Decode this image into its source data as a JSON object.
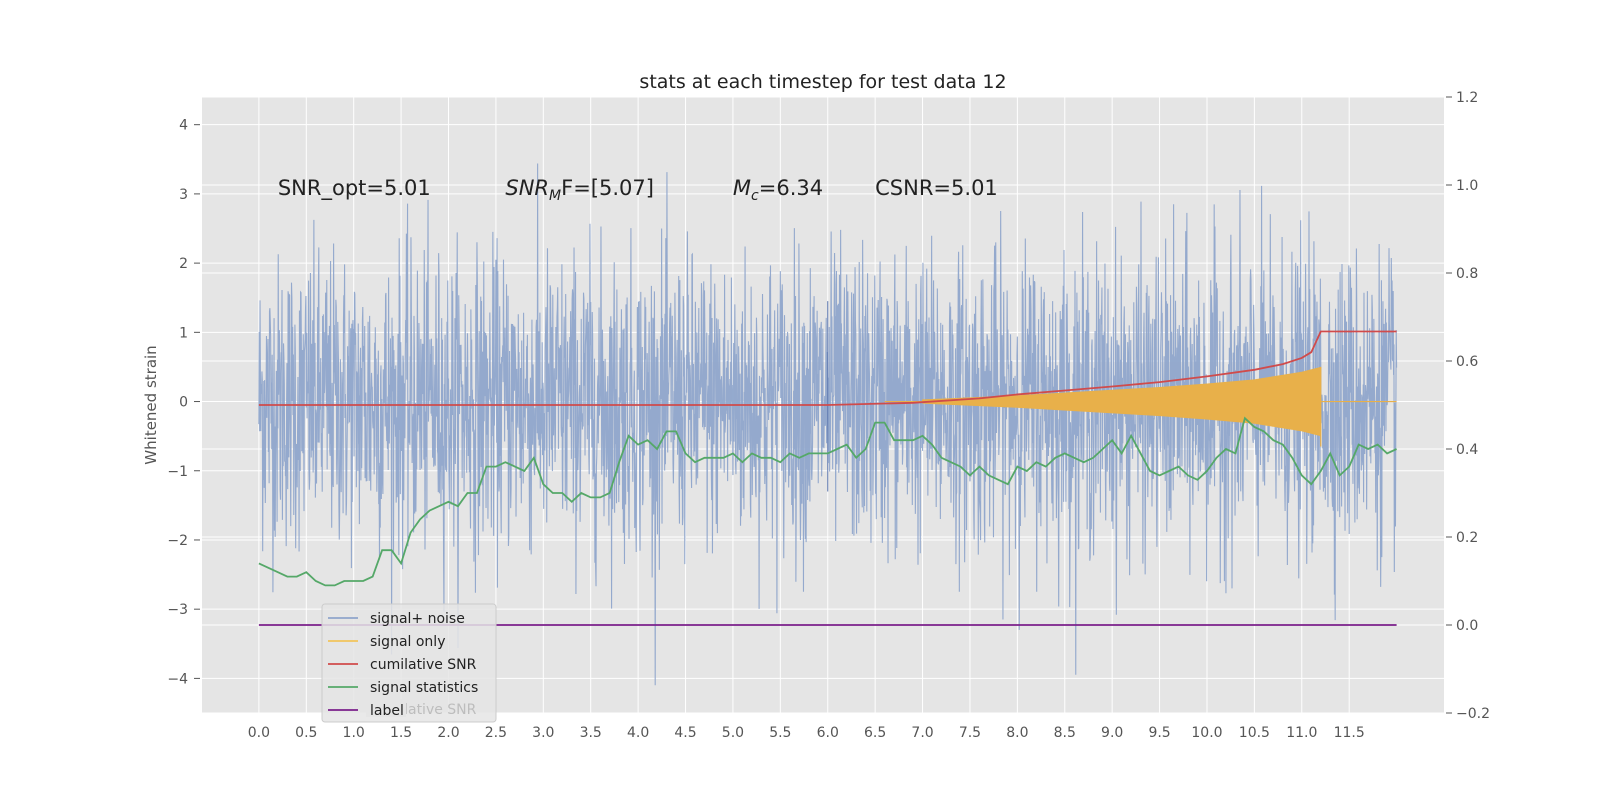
{
  "chart_data": {
    "type": "line",
    "title": "stats at each timestep for test data 12",
    "ylabel": "Whitened strain",
    "xlabel": "",
    "xlim": [
      -0.6,
      12.5
    ],
    "ylim_left": [
      -4.5,
      4.4
    ],
    "ylim_right": [
      -0.2,
      1.2
    ],
    "x_ticks": [
      "0.0",
      "0.5",
      "1.0",
      "1.5",
      "2.0",
      "2.5",
      "3.0",
      "3.5",
      "4.0",
      "4.5",
      "5.0",
      "5.5",
      "6.0",
      "6.5",
      "7.0",
      "7.5",
      "8.0",
      "8.5",
      "9.0",
      "9.5",
      "10.0",
      "10.5",
      "11.0",
      "11.5"
    ],
    "y_ticks_left": [
      "4",
      "3",
      "2",
      "1",
      "0",
      "−1",
      "−2",
      "−3",
      "−4"
    ],
    "y_ticks_right": [
      "1.2",
      "1.0",
      "0.8",
      "0.6",
      "0.4",
      "0.2",
      "0.0",
      "−0.2"
    ],
    "grid": true,
    "legend_position": "lower-left",
    "annotations": [
      {
        "text": "SNR_opt=5.01",
        "x": 0.2,
        "y": 3.1
      },
      {
        "sym": "SNR",
        "sub": "M",
        "rest": "F=[5.07]",
        "x": 2.6,
        "y": 3.1
      },
      {
        "sym": "M",
        "sub": "c",
        "rest": "=6.34",
        "x": 5.0,
        "y": 3.1
      },
      {
        "text": "CSNR=5.01",
        "x": 6.5,
        "y": 3.1
      }
    ],
    "series": [
      {
        "name": "signal+ noise",
        "color": "#8fa5cb",
        "axis": "left",
        "description": "dense gaussian noise, roughly within -3 to 3.5",
        "x_range": [
          0.0,
          12.0
        ],
        "envelope_high": 2.8,
        "envelope_low": -2.6,
        "spike": {
          "x": 6.0,
          "y": 1.45
        }
      },
      {
        "name": "signal only",
        "color": "#e8b04a",
        "axis": "left",
        "description": "chirp, amplitude growing from ~7.0 to 11.2 then zero",
        "x": [
          7.0,
          7.5,
          8.0,
          8.5,
          9.0,
          9.5,
          10.0,
          10.5,
          11.0,
          11.2
        ],
        "amplitude": [
          0.03,
          0.06,
          0.09,
          0.13,
          0.17,
          0.21,
          0.26,
          0.32,
          0.43,
          0.5
        ]
      },
      {
        "name": "cumilative SNR",
        "color": "#d04b4b",
        "axis": "right",
        "x": [
          0.0,
          6.0,
          6.9,
          7.6,
          8.0,
          8.5,
          9.0,
          9.5,
          10.0,
          10.5,
          10.8,
          11.0,
          11.1,
          11.2,
          12.0
        ],
        "y": [
          0.5,
          0.5,
          0.505,
          0.515,
          0.524,
          0.533,
          0.542,
          0.552,
          0.565,
          0.58,
          0.593,
          0.607,
          0.62,
          0.667,
          0.667
        ]
      },
      {
        "name": "signal statistics",
        "color": "#55a868",
        "axis": "right",
        "x": [
          0.0,
          0.1,
          0.2,
          0.3,
          0.4,
          0.5,
          0.6,
          0.7,
          0.8,
          0.9,
          1.0,
          1.1,
          1.2,
          1.3,
          1.4,
          1.5,
          1.6,
          1.7,
          1.8,
          1.9,
          2.0,
          2.1,
          2.2,
          2.3,
          2.4,
          2.5,
          2.6,
          2.7,
          2.8,
          2.9,
          3.0,
          3.1,
          3.2,
          3.3,
          3.4,
          3.5,
          3.6,
          3.7,
          3.8,
          3.9,
          4.0,
          4.1,
          4.2,
          4.3,
          4.4,
          4.5,
          4.6,
          4.7,
          4.8,
          4.9,
          5.0,
          5.1,
          5.2,
          5.3,
          5.4,
          5.5,
          5.6,
          5.7,
          5.8,
          5.9,
          6.0,
          6.1,
          6.2,
          6.3,
          6.4,
          6.5,
          6.6,
          6.7,
          6.8,
          6.9,
          7.0,
          7.1,
          7.2,
          7.3,
          7.4,
          7.5,
          7.6,
          7.7,
          7.8,
          7.9,
          8.0,
          8.1,
          8.2,
          8.3,
          8.4,
          8.5,
          8.6,
          8.7,
          8.8,
          8.9,
          9.0,
          9.1,
          9.2,
          9.3,
          9.4,
          9.5,
          9.6,
          9.7,
          9.8,
          9.9,
          10.0,
          10.1,
          10.2,
          10.3,
          10.4,
          10.5,
          10.6,
          10.7,
          10.8,
          10.9,
          11.0,
          11.1,
          11.2,
          11.3,
          11.4,
          11.5,
          11.6,
          11.7,
          11.8,
          11.9,
          12.0
        ],
        "y": [
          0.14,
          0.13,
          0.12,
          0.11,
          0.11,
          0.12,
          0.1,
          0.09,
          0.09,
          0.1,
          0.1,
          0.1,
          0.11,
          0.17,
          0.17,
          0.14,
          0.21,
          0.24,
          0.26,
          0.27,
          0.28,
          0.27,
          0.3,
          0.3,
          0.36,
          0.36,
          0.37,
          0.36,
          0.35,
          0.38,
          0.32,
          0.3,
          0.3,
          0.28,
          0.3,
          0.29,
          0.29,
          0.3,
          0.37,
          0.43,
          0.41,
          0.42,
          0.4,
          0.44,
          0.44,
          0.39,
          0.37,
          0.38,
          0.38,
          0.38,
          0.39,
          0.37,
          0.39,
          0.38,
          0.38,
          0.37,
          0.39,
          0.38,
          0.39,
          0.39,
          0.39,
          0.4,
          0.41,
          0.38,
          0.4,
          0.46,
          0.46,
          0.42,
          0.42,
          0.42,
          0.43,
          0.41,
          0.38,
          0.37,
          0.36,
          0.34,
          0.36,
          0.34,
          0.33,
          0.32,
          0.36,
          0.35,
          0.37,
          0.36,
          0.38,
          0.39,
          0.38,
          0.37,
          0.38,
          0.4,
          0.42,
          0.39,
          0.43,
          0.39,
          0.35,
          0.34,
          0.35,
          0.36,
          0.34,
          0.33,
          0.35,
          0.38,
          0.4,
          0.39,
          0.47,
          0.45,
          0.44,
          0.42,
          0.41,
          0.38,
          0.34,
          0.32,
          0.35,
          0.39,
          0.34,
          0.36,
          0.41,
          0.4,
          0.41,
          0.39,
          0.4
        ]
      },
      {
        "name": "label",
        "color": "#7b1f8a",
        "axis": "right",
        "x": [
          0.0,
          12.0
        ],
        "y": [
          0.0,
          0.0
        ]
      }
    ],
    "legend_entries": [
      {
        "label": "signal+ noise",
        "color": "#8fa5cb"
      },
      {
        "label": "signal only",
        "color": "#f2c45a"
      },
      {
        "label": "cumilative SNR",
        "color": "#d04b4b"
      },
      {
        "label": "signal statistics",
        "color": "#55a868"
      },
      {
        "label": "label",
        "color": "#7b1f8a"
      }
    ],
    "legend_ghost_label": "cumilative SNR"
  }
}
